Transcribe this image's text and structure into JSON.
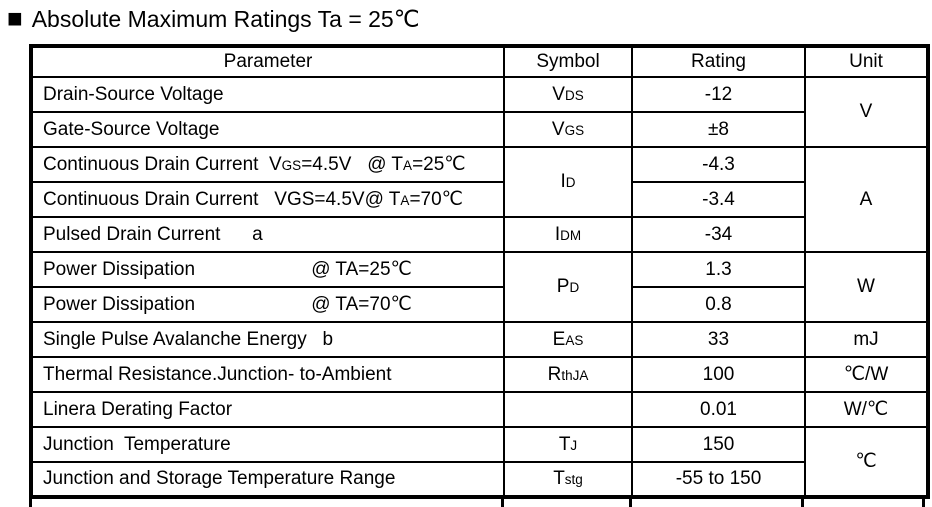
{
  "page": {
    "section_marker_icon": "■",
    "title": "Absolute Maximum Ratings Ta = 25℃"
  },
  "table": {
    "headers": [
      "Parameter",
      "Symbol",
      "Rating",
      "Unit"
    ],
    "rows": [
      {
        "parameter": [
          {
            "t": "Drain-Source Voltage"
          }
        ],
        "symbol": [
          {
            "t": "V"
          },
          {
            "t": "DS",
            "sub": true
          }
        ],
        "rating": "-12",
        "unit": "V"
      },
      {
        "parameter": [
          {
            "t": "Gate-Source Voltage"
          }
        ],
        "symbol": [
          {
            "t": "V"
          },
          {
            "t": "GS",
            "sub": true
          }
        ],
        "rating": "±8"
      },
      {
        "parameter": [
          {
            "t": "Continuous Drain Current  V"
          },
          {
            "t": "GS",
            "sub": true
          },
          {
            "t": "=4.5V   @ T"
          },
          {
            "t": "A",
            "sub": true
          },
          {
            "t": "=25℃"
          }
        ],
        "symbol": [
          {
            "t": "I"
          },
          {
            "t": "D",
            "sub": true
          }
        ],
        "rating": "-4.3",
        "unit": "A"
      },
      {
        "parameter": [
          {
            "t": "Continuous Drain Current   VGS=4.5V@ T"
          },
          {
            "t": "A",
            "sub": true
          },
          {
            "t": "=70℃"
          }
        ],
        "rating": "-3.4"
      },
      {
        "parameter": [
          {
            "t": "Pulsed Drain Current      a"
          }
        ],
        "symbol": [
          {
            "t": "I"
          },
          {
            "t": "DM",
            "sub": true
          }
        ],
        "rating": "-34"
      },
      {
        "parameter": [
          {
            "t": "Power Dissipation                      @ TA=25℃"
          }
        ],
        "symbol": [
          {
            "t": "P"
          },
          {
            "t": "D",
            "sub": true
          }
        ],
        "rating": "1.3",
        "unit": "W"
      },
      {
        "parameter": [
          {
            "t": "Power Dissipation                      @ TA=70℃"
          }
        ],
        "rating": "0.8"
      },
      {
        "parameter": [
          {
            "t": "Single Pulse Avalanche Energy   b"
          }
        ],
        "symbol": [
          {
            "t": "E"
          },
          {
            "t": "AS",
            "sub": true
          }
        ],
        "rating": "33",
        "unit": "mJ"
      },
      {
        "parameter": [
          {
            "t": "Thermal Resistance.Junction- to-Ambient"
          }
        ],
        "symbol": [
          {
            "t": "R"
          },
          {
            "t": "thJA",
            "sub": true
          }
        ],
        "rating": "100",
        "unit": "℃/W"
      },
      {
        "parameter": [
          {
            "t": "Linera Derating Factor"
          }
        ],
        "symbol": [],
        "rating": "0.01",
        "unit": "W/℃"
      },
      {
        "parameter": [
          {
            "t": "Junction  Temperature"
          }
        ],
        "symbol": [
          {
            "t": "T"
          },
          {
            "t": "J",
            "sub": true
          }
        ],
        "rating": "150",
        "unit": "℃"
      },
      {
        "parameter": [
          {
            "t": "Junction and Storage Temperature Range"
          }
        ],
        "symbol": [
          {
            "t": "T"
          },
          {
            "t": "stg",
            "sub": true
          }
        ],
        "rating": "-55 to 150"
      }
    ]
  }
}
